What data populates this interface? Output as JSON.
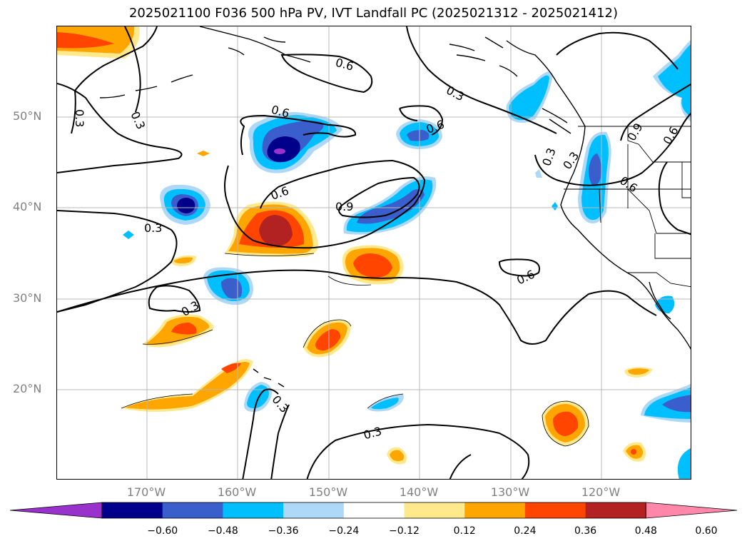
{
  "figure": {
    "title": "2025021100 F036 500 hPa PV, IVT Landfall PC (2025021312 - 2025021412)"
  },
  "map": {
    "lat_labels": [
      "50°N",
      "40°N",
      "30°N",
      "20°N"
    ],
    "lon_labels": [
      "170°W",
      "160°W",
      "150°W",
      "140°W",
      "130°W",
      "120°W"
    ],
    "gridlines": true,
    "features": [
      "coastline",
      "country-borders",
      "state-borders"
    ],
    "contour_labels": [
      "0.3",
      "0.3",
      "0.6",
      "0.6",
      "0.3",
      "0.6",
      "0.6",
      "0.9",
      "0.3",
      "0.6",
      "0.3",
      "0.6",
      "0.9",
      "0.6",
      "0.3",
      "0.3",
      "0.3",
      "0.3"
    ]
  },
  "colorbar": {
    "tick_labels": [
      "−0.60",
      "−0.48",
      "−0.36",
      "−0.24",
      "−0.12",
      "0.12",
      "0.24",
      "0.36",
      "0.48",
      "0.60"
    ],
    "colors": [
      "#9932cc",
      "#00008b",
      "#3a5fcd",
      "#00bfff",
      "#add8f7",
      "#ffffff",
      "#ffe98c",
      "#ffa500",
      "#ff4500",
      "#b22222",
      "#ff88aa"
    ],
    "extend": "both"
  }
}
